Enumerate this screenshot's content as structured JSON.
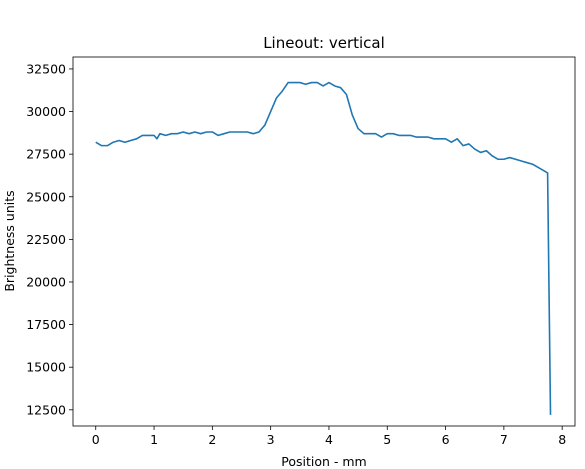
{
  "chart_data": {
    "type": "line",
    "title": "Lineout: vertical",
    "xlabel": "Position - mm",
    "ylabel": "Brightness units",
    "xlim": [
      -0.39,
      8.22
    ],
    "ylim": [
      11550,
      33200
    ],
    "x_ticks": [
      0,
      1,
      2,
      3,
      4,
      5,
      6,
      7,
      8
    ],
    "x_tick_labels": [
      "0",
      "1",
      "2",
      "3",
      "4",
      "5",
      "6",
      "7",
      "8"
    ],
    "y_ticks": [
      12500,
      15000,
      17500,
      20000,
      22500,
      25000,
      27500,
      30000,
      32500
    ],
    "y_tick_labels": [
      "12500",
      "15000",
      "17500",
      "20000",
      "22500",
      "25000",
      "27500",
      "30000",
      "32500"
    ],
    "grid": false,
    "legend": "none",
    "series": [
      {
        "color": "#1f77b4",
        "x": [
          0.0,
          0.1,
          0.2,
          0.3,
          0.4,
          0.5,
          0.6,
          0.7,
          0.8,
          0.9,
          1.0,
          1.05,
          1.1,
          1.2,
          1.3,
          1.4,
          1.5,
          1.6,
          1.7,
          1.8,
          1.9,
          2.0,
          2.1,
          2.2,
          2.3,
          2.4,
          2.5,
          2.6,
          2.7,
          2.8,
          2.9,
          3.0,
          3.1,
          3.2,
          3.3,
          3.4,
          3.5,
          3.6,
          3.7,
          3.8,
          3.9,
          4.0,
          4.1,
          4.2,
          4.3,
          4.4,
          4.5,
          4.6,
          4.7,
          4.8,
          4.9,
          5.0,
          5.1,
          5.2,
          5.3,
          5.4,
          5.5,
          5.6,
          5.7,
          5.8,
          5.9,
          6.0,
          6.1,
          6.2,
          6.3,
          6.4,
          6.5,
          6.6,
          6.7,
          6.8,
          6.9,
          7.0,
          7.1,
          7.2,
          7.3,
          7.4,
          7.5,
          7.6,
          7.7,
          7.75,
          7.8
        ],
        "y": [
          28200,
          28000,
          28000,
          28200,
          28300,
          28200,
          28300,
          28400,
          28600,
          28600,
          28600,
          28400,
          28700,
          28600,
          28700,
          28700,
          28800,
          28700,
          28800,
          28700,
          28800,
          28800,
          28600,
          28700,
          28800,
          28800,
          28800,
          28800,
          28700,
          28800,
          29200,
          30000,
          30800,
          31200,
          31700,
          31700,
          31700,
          31600,
          31700,
          31700,
          31500,
          31700,
          31500,
          31400,
          31000,
          29800,
          29000,
          28700,
          28700,
          28700,
          28500,
          28700,
          28700,
          28600,
          28600,
          28600,
          28500,
          28500,
          28500,
          28400,
          28400,
          28400,
          28200,
          28400,
          28000,
          28100,
          27800,
          27600,
          27700,
          27400,
          27200,
          27200,
          27300,
          27200,
          27100,
          27000,
          26900,
          26700,
          26500,
          26400,
          12200
        ]
      }
    ]
  }
}
